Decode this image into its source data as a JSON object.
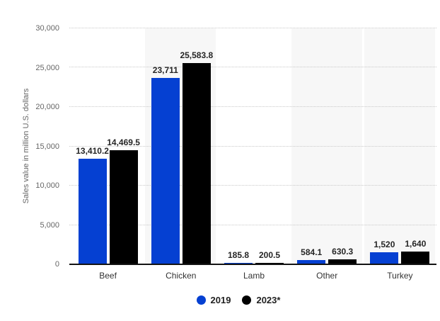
{
  "chart_data": {
    "type": "bar",
    "title": "",
    "ylabel": "Sales value in million U.S. dollars",
    "xlabel": "",
    "ylim": [
      0,
      30000
    ],
    "ytick_step": 5000,
    "ytick_labels": [
      "0",
      "5,000",
      "10,000",
      "15,000",
      "20,000",
      "25,000",
      "30,000"
    ],
    "grid": "horizontal-dotted",
    "legend_position": "bottom-center",
    "categories": [
      "Beef",
      "Chicken",
      "Lamb",
      "Other",
      "Turkey"
    ],
    "shaded_categories": [
      "Chicken",
      "Other",
      "Turkey"
    ],
    "band_color": "#f7f7f7",
    "series": [
      {
        "name": "2019",
        "color": "#0540d2",
        "values": [
          13410.2,
          23711,
          185.8,
          584.1,
          1520
        ],
        "value_labels": [
          "13,410.2",
          "23,711",
          "185.8",
          "584.1",
          "1,520"
        ]
      },
      {
        "name": "2023*",
        "color": "#000000",
        "values": [
          14469.5,
          25583.8,
          200.5,
          630.3,
          1640
        ],
        "value_labels": [
          "14,469.5",
          "25,583.8",
          "200.5",
          "630.3",
          "1,640"
        ]
      }
    ]
  }
}
